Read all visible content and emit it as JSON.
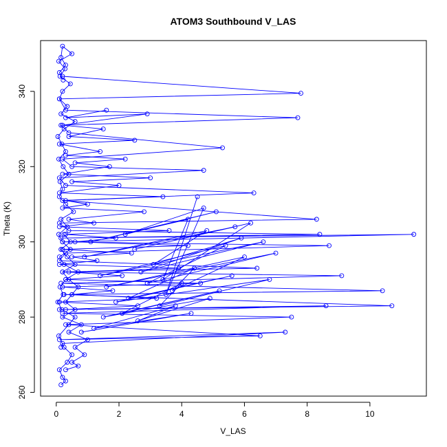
{
  "chart_data": {
    "type": "line",
    "title": "ATOM3 Southbound V_LAS",
    "xlabel": "V_LAS",
    "ylabel": "Theta (K)",
    "xlim": [
      -0.5,
      11.8
    ],
    "ylim": [
      259,
      353.5
    ],
    "xticks": [
      0,
      2,
      4,
      6,
      8,
      10
    ],
    "yticks": [
      260,
      280,
      300,
      320,
      340
    ],
    "xtick_labels": [
      "0",
      "2",
      "4",
      "6",
      "8",
      "10"
    ],
    "ytick_labels": [
      "260",
      "280",
      "300",
      "320",
      "340"
    ],
    "grid": false,
    "legend": "none",
    "color": "#0000ff",
    "marker": "open-circle",
    "series": [
      {
        "x": [
          0.15,
          0.3,
          0.2,
          0.1,
          0.35,
          0.5,
          0.25,
          0.08,
          0.4,
          0.6,
          0.18,
          0.05,
          0.22,
          0.12,
          0.3,
          0.7,
          0.25,
          0.1,
          0.45,
          0.2,
          0.08,
          0.35,
          0.15,
          0.55,
          0.3,
          0.1,
          0.2,
          0.12,
          0.4,
          0.22,
          0.08,
          0.3,
          0.18,
          0.05,
          0.25,
          0.6,
          0.15,
          0.35,
          0.1,
          0.2,
          0.45,
          0.12,
          0.28,
          0.08,
          0.5,
          0.2,
          0.15,
          0.3,
          0.1,
          0.22
        ],
        "y": [
          262,
          263,
          264,
          266,
          268,
          270,
          272,
          275,
          278,
          280,
          282,
          284,
          286,
          288,
          290,
          292,
          294,
          296,
          298,
          300,
          302,
          304,
          306,
          308,
          310,
          312,
          314,
          316,
          318,
          320,
          322,
          324,
          326,
          328,
          330,
          332,
          334,
          336,
          338,
          340,
          342,
          344,
          346,
          348,
          350,
          352,
          349,
          347,
          345,
          343
        ]
      },
      {
        "x": [
          0.2,
          7.8,
          0.1,
          0.3,
          7.7,
          0.15,
          0.4,
          5.3,
          0.2,
          0.5,
          4.7,
          0.1,
          0.3,
          6.3,
          0.2,
          8.3,
          0.1,
          0.4,
          8.4,
          0.15,
          11.4,
          0.2,
          8.7,
          0.3,
          0.1,
          6.4,
          0.2,
          9.1,
          0.15,
          10.4,
          0.25,
          10.7,
          0.1,
          8.6,
          0.2,
          7.5,
          0.3,
          6.5,
          0.1,
          7.3,
          0.2,
          0.15
        ],
        "y": [
          344,
          339.5,
          338,
          335,
          333,
          331,
          329,
          325,
          322,
          320,
          319,
          317,
          315,
          313,
          311,
          306,
          305,
          303,
          302,
          301,
          302,
          300,
          299,
          297,
          295,
          293,
          292,
          291,
          289,
          287,
          286,
          283,
          282,
          283,
          281,
          280,
          278,
          275,
          274,
          276,
          273,
          272
        ]
      },
      {
        "x": [
          1.6,
          0.3,
          2.9,
          0.2,
          1.5,
          0.4,
          2.5,
          0.1,
          1.4,
          0.3,
          2.2,
          0.6,
          1.7,
          0.2,
          3.0,
          0.5,
          2.0,
          0.1,
          3.4,
          0.3,
          1.0,
          0.2,
          2.8,
          0.4,
          1.2,
          0.1,
          3.6,
          0.3,
          1.9,
          0.6,
          4.2,
          0.2,
          2.4,
          0.5,
          1.3,
          0.1,
          3.9,
          0.4,
          2.1,
          0.3,
          4.6,
          0.2,
          1.8,
          0.5,
          3.2,
          0.1,
          2.6,
          0.3
        ],
        "y": [
          335,
          333,
          334,
          331,
          330,
          328,
          327,
          326,
          324,
          323,
          322,
          321,
          320,
          318,
          317,
          316,
          315,
          313,
          312,
          311,
          310,
          309,
          308,
          306,
          305,
          304,
          303,
          302,
          301,
          300,
          299,
          298,
          297,
          296,
          295,
          294,
          293,
          292,
          291,
          290,
          289,
          288,
          287,
          286,
          285,
          284,
          283,
          282
        ]
      },
      {
        "x": [
          4.5,
          3.5,
          4.7,
          2.2,
          5.1,
          1.1,
          4.2,
          3.4,
          6.2,
          2.5,
          5.7,
          0.9,
          4.8,
          3.1,
          5.9,
          2.7,
          6.6,
          1.4,
          5.4,
          2.9,
          7.0,
          1.6,
          6.0,
          3.7,
          4.4,
          2.3,
          5.6,
          1.9,
          6.8,
          3.3,
          4.0,
          2.1,
          5.2,
          1.5,
          4.9,
          2.6,
          3.8,
          1.2,
          4.3,
          0.8
        ],
        "y": [
          312,
          286,
          309,
          302,
          308,
          300,
          306,
          290,
          305,
          298,
          304,
          296,
          303,
          294,
          301,
          292,
          300,
          291,
          299,
          289,
          297,
          288,
          296,
          287,
          293,
          285,
          291,
          284,
          290,
          283,
          289,
          281,
          287,
          280,
          285,
          279,
          283,
          277,
          281,
          276
        ]
      },
      {
        "x": [
          0.3,
          0.7,
          0.5,
          0.9,
          0.6,
          1.0,
          0.4,
          0.8,
          0.2,
          0.6,
          0.3,
          0.5,
          0.7,
          0.4,
          0.2,
          0.6,
          0.35,
          0.15,
          0.45,
          0.25
        ],
        "y": [
          266,
          267,
          268,
          270,
          272,
          274,
          276,
          278,
          280,
          282,
          284,
          286,
          288,
          290,
          292,
          294,
          296,
          298,
          300,
          302
        ]
      }
    ]
  }
}
